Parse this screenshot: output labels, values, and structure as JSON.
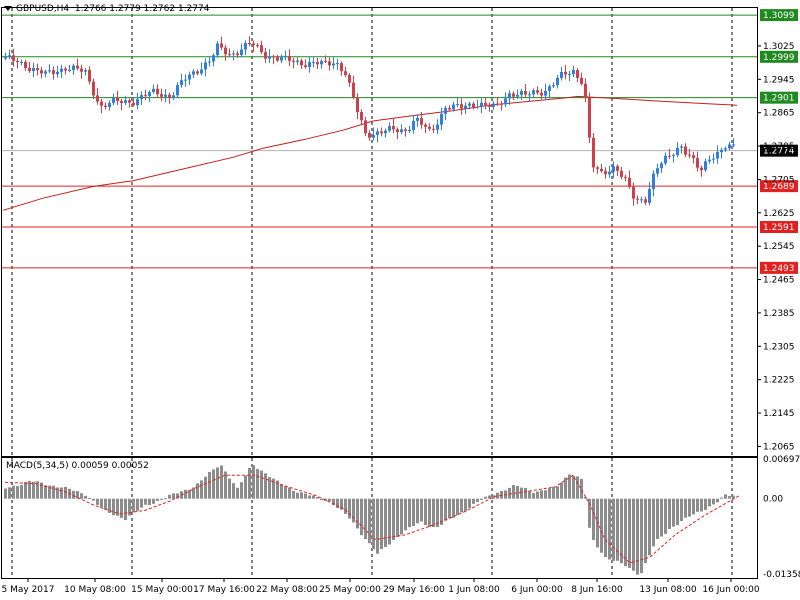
{
  "symbol_header": "GBPUSD,H4",
  "ohlc_header": "1.2766 1.2779 1.2762 1.2774",
  "macd_label": "MACD(5,34,5)",
  "macd_header_values": "0.00059 0.00052",
  "colors": {
    "bull": "#2f7fe0",
    "bear": "#d0404a",
    "support": "#e22020",
    "resistance": "#1f8a1f",
    "ma": "#c0201f",
    "macd_hist": "#8c8c8c",
    "macd_signal": "#e02020",
    "current": "#b0b0b0"
  },
  "chart_data": [
    {
      "type": "candlestick",
      "price_axis": {
        "range": [
          1.2042,
          1.3116
        ],
        "ticks": [
          "1.3025",
          "1.2945",
          "1.2865",
          "1.2785",
          "1.2705",
          "1.2625",
          "1.2545",
          "1.2465",
          "1.2385",
          "1.2305",
          "1.2225",
          "1.2145",
          "1.2065"
        ]
      },
      "time_axis": {
        "ticks": [
          "5 May 2017",
          "10 May 08:00",
          "15 May 00:00",
          "17 May 16:00",
          "22 May 08:00",
          "25 May 00:00",
          "29 May 16:00",
          "1 Jun 08:00",
          "6 Jun 00:00",
          "8 Jun 16:00",
          "13 Jun 08:00",
          "16 Jun 00:00"
        ]
      },
      "levels": [
        {
          "label": "1.3099",
          "price": 1.3099,
          "kind": "resistance"
        },
        {
          "label": "1.2999",
          "price": 1.2999,
          "kind": "resistance"
        },
        {
          "label": "1.2901",
          "price": 1.2901,
          "kind": "resistance"
        },
        {
          "label": "1.2689",
          "price": 1.2689,
          "kind": "support"
        },
        {
          "label": "1.2591",
          "price": 1.2591,
          "kind": "support"
        },
        {
          "label": "1.2493",
          "price": 1.2493,
          "kind": "support"
        }
      ],
      "current_price": {
        "label": "1.2774",
        "price": 1.2774
      },
      "moving_average_path": [
        [
          0,
          1.2631
        ],
        [
          40,
          1.266
        ],
        [
          90,
          1.2688
        ],
        [
          130,
          1.2702
        ],
        [
          180,
          1.273
        ],
        [
          230,
          1.2758
        ],
        [
          260,
          1.278
        ],
        [
          300,
          1.28
        ],
        [
          340,
          1.2823
        ],
        [
          370,
          1.2845
        ],
        [
          410,
          1.2858
        ],
        [
          450,
          1.287
        ],
        [
          490,
          1.2884
        ],
        [
          530,
          1.2893
        ],
        [
          560,
          1.29
        ],
        [
          575,
          1.2904
        ],
        [
          590,
          1.2902
        ],
        [
          620,
          1.2898
        ],
        [
          660,
          1.2892
        ],
        [
          700,
          1.2887
        ],
        [
          734,
          1.2883
        ]
      ],
      "anchors": [
        [
          0,
          1.2995
        ],
        [
          20,
          1.298
        ],
        [
          40,
          1.2955
        ],
        [
          60,
          1.2975
        ],
        [
          80,
          1.296
        ],
        [
          95,
          1.288
        ],
        [
          110,
          1.289
        ],
        [
          130,
          1.2895
        ],
        [
          150,
          1.2915
        ],
        [
          165,
          1.2905
        ],
        [
          180,
          1.2945
        ],
        [
          195,
          1.2975
        ],
        [
          205,
          1.299
        ],
        [
          212,
          1.302
        ],
        [
          225,
          1.3005
        ],
        [
          245,
          1.303
        ],
        [
          260,
          1.3005
        ],
        [
          280,
          1.299
        ],
        [
          300,
          1.2985
        ],
        [
          320,
          1.298
        ],
        [
          330,
          1.299
        ],
        [
          340,
          1.296
        ],
        [
          350,
          1.288
        ],
        [
          360,
          1.2815
        ],
        [
          380,
          1.282
        ],
        [
          400,
          1.2825
        ],
        [
          410,
          1.285
        ],
        [
          425,
          1.2815
        ],
        [
          440,
          1.288
        ],
        [
          455,
          1.2875
        ],
        [
          470,
          1.289
        ],
        [
          490,
          1.2875
        ],
        [
          505,
          1.2915
        ],
        [
          520,
          1.2905
        ],
        [
          540,
          1.292
        ],
        [
          555,
          1.295
        ],
        [
          568,
          1.2965
        ],
        [
          578,
          1.294
        ],
        [
          582,
          1.286
        ],
        [
          586,
          1.274
        ],
        [
          595,
          1.2715
        ],
        [
          610,
          1.274
        ],
        [
          620,
          1.27
        ],
        [
          630,
          1.265
        ],
        [
          640,
          1.266
        ],
        [
          650,
          1.273
        ],
        [
          665,
          1.276
        ],
        [
          675,
          1.279
        ],
        [
          685,
          1.276
        ],
        [
          695,
          1.272
        ],
        [
          705,
          1.276
        ],
        [
          720,
          1.2785
        ],
        [
          734,
          1.2774
        ]
      ]
    },
    {
      "type": "macd_histogram",
      "title": "MACD(5,34,5)",
      "range": [
        -0.01358,
        0.00697
      ],
      "ticks": [
        "0.00697",
        "0.00",
        "-0.01358"
      ],
      "anchors": [
        [
          0,
          0.0018
        ],
        [
          25,
          0.003
        ],
        [
          55,
          0.002
        ],
        [
          80,
          0.0008
        ],
        [
          100,
          -0.0022
        ],
        [
          120,
          -0.0034
        ],
        [
          140,
          -0.0012
        ],
        [
          165,
          0.0005
        ],
        [
          190,
          0.0022
        ],
        [
          215,
          0.006
        ],
        [
          232,
          0.0016
        ],
        [
          247,
          0.006
        ],
        [
          270,
          0.003
        ],
        [
          295,
          0.001
        ],
        [
          325,
          -0.0005
        ],
        [
          345,
          -0.0035
        ],
        [
          372,
          -0.0095
        ],
        [
          395,
          -0.006
        ],
        [
          415,
          -0.004
        ],
        [
          430,
          -0.005
        ],
        [
          450,
          -0.003
        ],
        [
          470,
          -0.0008
        ],
        [
          490,
          0.001
        ],
        [
          510,
          0.0022
        ],
        [
          530,
          0.0012
        ],
        [
          550,
          0.0018
        ],
        [
          565,
          0.0045
        ],
        [
          578,
          0.003
        ],
        [
          585,
          -0.0065
        ],
        [
          600,
          -0.01
        ],
        [
          620,
          -0.0115
        ],
        [
          635,
          -0.013
        ],
        [
          650,
          -0.0075
        ],
        [
          665,
          -0.005
        ],
        [
          685,
          -0.003
        ],
        [
          710,
          -0.0008
        ],
        [
          720,
          0.0005
        ],
        [
          734,
          0.0006
        ]
      ],
      "signal_anchors": [
        [
          0,
          0.0028
        ],
        [
          30,
          0.0026
        ],
        [
          60,
          0.0012
        ],
        [
          90,
          -0.0012
        ],
        [
          115,
          -0.0026
        ],
        [
          140,
          -0.002
        ],
        [
          165,
          -0.0004
        ],
        [
          190,
          0.0018
        ],
        [
          220,
          0.004
        ],
        [
          250,
          0.004
        ],
        [
          280,
          0.0022
        ],
        [
          310,
          0.0006
        ],
        [
          340,
          -0.0018
        ],
        [
          370,
          -0.007
        ],
        [
          400,
          -0.0062
        ],
        [
          430,
          -0.0044
        ],
        [
          460,
          -0.0022
        ],
        [
          490,
          0.0004
        ],
        [
          520,
          0.0012
        ],
        [
          550,
          0.002
        ],
        [
          568,
          0.004
        ],
        [
          585,
          -0.001
        ],
        [
          600,
          -0.007
        ],
        [
          625,
          -0.011
        ],
        [
          645,
          -0.01
        ],
        [
          670,
          -0.0062
        ],
        [
          700,
          -0.0028
        ],
        [
          734,
          0.0005
        ]
      ]
    }
  ]
}
